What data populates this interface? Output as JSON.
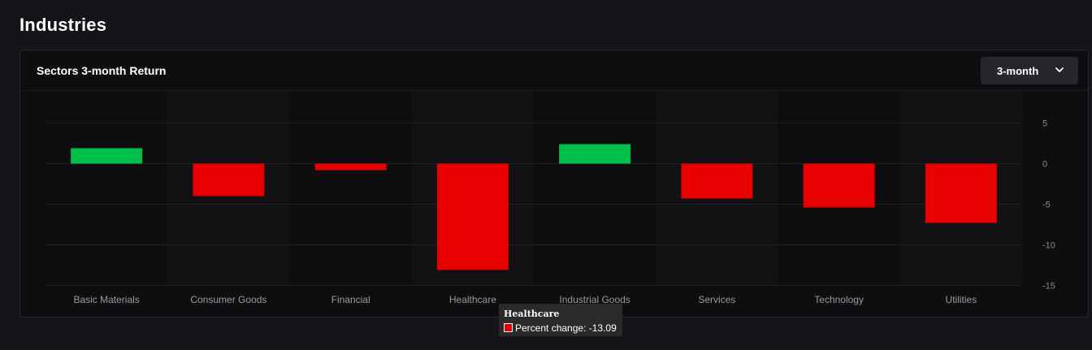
{
  "page": {
    "title": "Industries"
  },
  "card": {
    "title": "Sectors 3-month Return",
    "dropdown": {
      "selected": "3-month",
      "icon": "chevron-down-icon"
    }
  },
  "colors": {
    "positive": "#00c04b",
    "negative": "#e60000",
    "background": "#141419",
    "panel": "#0e0e10",
    "band": "#121214",
    "grid": "#1f1f24",
    "tick_text": "#8a8a90",
    "category_text": "#9a9aa0"
  },
  "chart_data": {
    "type": "bar",
    "title": "Sectors 3-month Return",
    "categories": [
      "Basic Materials",
      "Consumer Goods",
      "Financial",
      "Healthcare",
      "Industrial Goods",
      "Services",
      "Technology",
      "Utilities"
    ],
    "series": [
      {
        "name": "Percent change",
        "values": [
          1.9,
          -4.0,
          -0.8,
          -13.09,
          2.4,
          -4.3,
          -5.4,
          -7.3
        ]
      }
    ],
    "ylim": [
      -15,
      8
    ],
    "yticks": [
      5,
      0,
      -5,
      -10,
      -15
    ],
    "y_axis_position": "right",
    "grid": true,
    "xlabel": "",
    "ylabel": ""
  },
  "tooltip": {
    "title": "Healthcare",
    "series_label": "Percent change",
    "value": "-13.09",
    "text": "Percent change: -13.09"
  }
}
